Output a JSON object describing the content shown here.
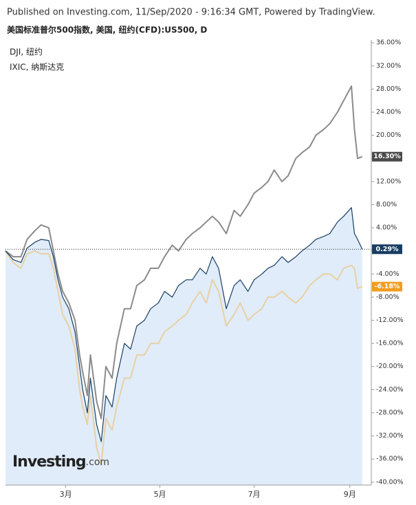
{
  "chart_data": {
    "type": "line",
    "header": "Published on Investing.com, 11/Sep/2020 - 9:16:34 GMT, Powered by TradingView.",
    "title": "美国标准普尔500指数, 美国, 纽约(CFD):US500, D",
    "logo": {
      "brand": "Investing",
      "suffix": ".com"
    },
    "x": [
      0,
      5,
      10,
      14,
      19,
      23,
      28,
      31,
      34,
      37,
      41,
      45,
      48,
      50,
      53,
      55,
      59,
      62,
      65,
      69,
      72,
      77,
      81,
      85,
      90,
      94,
      99,
      103,
      108,
      112,
      117,
      121,
      126,
      130,
      134,
      138,
      143,
      148,
      152,
      157,
      161,
      166,
      170,
      174,
      179,
      183,
      188,
      192,
      197,
      201,
      206,
      210,
      215,
      219,
      224,
      226,
      228,
      231
    ],
    "xlim": [
      0,
      236
    ],
    "xticks": [
      {
        "value": 39,
        "label": "3月"
      },
      {
        "value": 100,
        "label": "5月"
      },
      {
        "value": 161,
        "label": "7月"
      },
      {
        "value": 223,
        "label": "9月"
      }
    ],
    "ylim": [
      -40.5,
      36.5
    ],
    "yticks": [
      {
        "value": 36,
        "label": "36.00%"
      },
      {
        "value": 32,
        "label": "32.00%"
      },
      {
        "value": 28,
        "label": "28.00%"
      },
      {
        "value": 24,
        "label": "24.00%"
      },
      {
        "value": 20,
        "label": "20.00%"
      },
      {
        "value": 16,
        "label": "16.00%"
      },
      {
        "value": 12,
        "label": "12.00%"
      },
      {
        "value": 8,
        "label": "8.00%"
      },
      {
        "value": 4,
        "label": "4.00%"
      },
      {
        "value": 0,
        "label": "0.00%"
      },
      {
        "value": -4,
        "label": "-4.00%"
      },
      {
        "value": -8,
        "label": "-8.00%"
      },
      {
        "value": -12,
        "label": "-12.00%"
      },
      {
        "value": -16,
        "label": "-16.00%"
      },
      {
        "value": -20,
        "label": "-20.00%"
      },
      {
        "value": -24,
        "label": "-24.00%"
      },
      {
        "value": -28,
        "label": "-28.00%"
      },
      {
        "value": -32,
        "label": "-32.00%"
      },
      {
        "value": -36,
        "label": "-36.00%"
      },
      {
        "value": -40,
        "label": "-40.00%"
      }
    ],
    "series": [
      {
        "name": "US500",
        "color": "#173d63",
        "fill": "#d6e6f7",
        "tag_color": "#173d63",
        "last_label": "0.29%",
        "values": [
          0,
          -1.5,
          -2,
          0.5,
          1.5,
          2,
          1.8,
          -1,
          -5,
          -8,
          -10,
          -14,
          -20,
          -24,
          -28,
          -22,
          -30,
          -33,
          -25,
          -27,
          -22,
          -16,
          -17,
          -13,
          -12,
          -10,
          -9,
          -7,
          -8,
          -6,
          -5,
          -5,
          -3,
          -4,
          -1,
          -3,
          -10,
          -6,
          -5,
          -7,
          -5,
          -4,
          -3,
          -2.5,
          -1,
          -2,
          -1,
          0,
          1,
          2,
          2.5,
          3,
          5,
          6,
          7.5,
          3,
          2,
          0.29
        ]
      },
      {
        "name": "DJI, 纽约",
        "color": "#e8d0a4",
        "tag_color": "#f39c1f",
        "last_label": "-6.18%",
        "values": [
          0,
          -2,
          -3,
          -0.5,
          0,
          -0.5,
          -0.5,
          -3,
          -7,
          -11,
          -13,
          -17,
          -24,
          -27,
          -30,
          -25,
          -34,
          -37,
          -29,
          -31,
          -27,
          -22,
          -22,
          -18,
          -18,
          -16,
          -16,
          -14,
          -13,
          -12,
          -11,
          -9,
          -7,
          -9,
          -5,
          -7,
          -13,
          -11,
          -9,
          -12,
          -11,
          -10,
          -8,
          -8,
          -7,
          -8,
          -9,
          -8,
          -6,
          -5,
          -4,
          -4,
          -5,
          -3,
          -2.5,
          -3,
          -6.5,
          -6.18
        ]
      },
      {
        "name": "IXIC, 纳斯达克",
        "color": "#8a8a8a",
        "tag_color": "#4a4a4a",
        "last_label": "16.30%",
        "values": [
          0,
          -1,
          -1,
          2,
          3.5,
          4.5,
          4,
          0,
          -4,
          -7,
          -9,
          -12,
          -18,
          -21,
          -25,
          -18,
          -26,
          -29,
          -20,
          -22,
          -16,
          -10,
          -10,
          -6,
          -5,
          -3,
          -3,
          -1,
          1,
          0,
          2,
          3,
          4,
          5,
          6,
          5,
          3,
          7,
          6,
          8,
          10,
          11,
          12,
          14,
          12,
          13,
          16,
          17,
          18,
          20,
          21,
          22,
          24,
          26,
          28.5,
          21,
          16,
          16.3
        ]
      }
    ]
  }
}
